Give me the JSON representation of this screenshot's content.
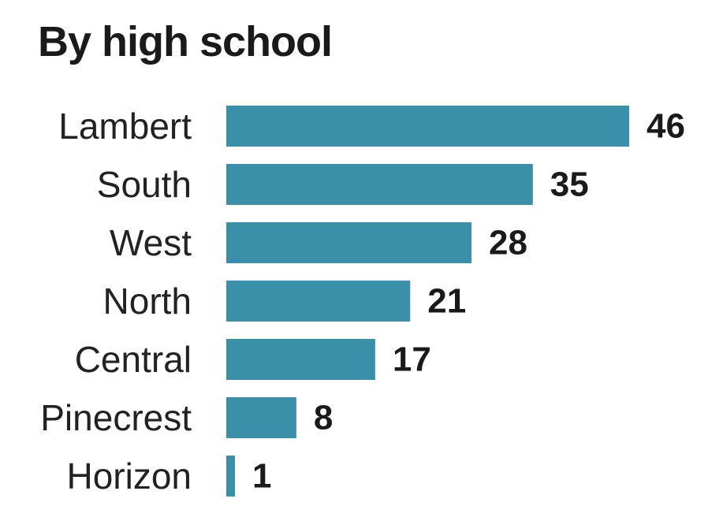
{
  "chart_data": {
    "type": "bar",
    "orientation": "horizontal",
    "title": "By high school",
    "categories": [
      "Lambert",
      "South",
      "West",
      "North",
      "Central",
      "Pinecrest",
      "Horizon"
    ],
    "values": [
      46,
      35,
      28,
      21,
      17,
      8,
      1
    ],
    "xlabel": "",
    "ylabel": "",
    "xlim": [
      0,
      46
    ],
    "grid": false,
    "legend": "none",
    "bar_color": "#3a8fa9",
    "data_labels": true
  }
}
